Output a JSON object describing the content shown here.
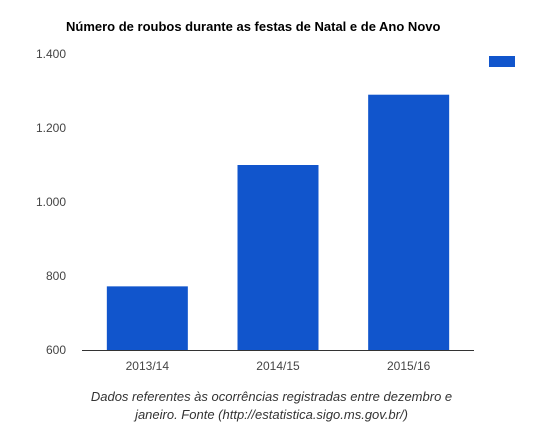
{
  "chart_data": {
    "type": "bar",
    "title": "Número de roubos durante as festas de Natal e de Ano Novo",
    "categories": [
      "2013/14",
      "2014/15",
      "2015/16"
    ],
    "series": [
      {
        "values": [
          772,
          1100,
          1290
        ],
        "color": "#1155CC"
      }
    ],
    "ylim": [
      600,
      1400
    ],
    "yticks": [
      600,
      800,
      1000,
      1200,
      1400
    ],
    "ytick_labels": [
      "600",
      "800",
      "1.000",
      "1.200",
      "1.400"
    ],
    "xlabel": "",
    "ylabel": "",
    "grid": false,
    "legend": "top-right"
  },
  "caption": {
    "line1": "Dados referentes às ocorrências registradas entre dezembro e",
    "line2": "janeiro. Fonte (http://estatistica.sigo.ms.gov.br/)"
  }
}
